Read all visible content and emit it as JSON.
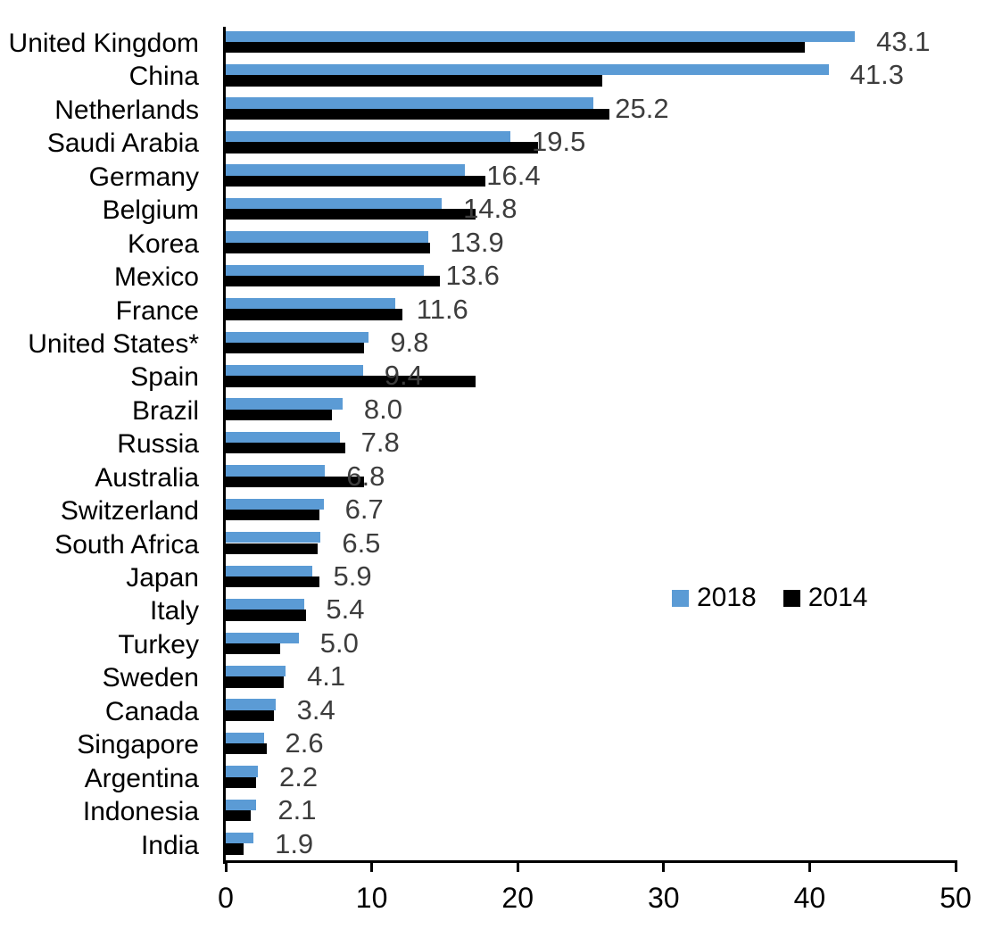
{
  "chart_data": {
    "type": "bar",
    "orientation": "horizontal",
    "title": "",
    "xlabel": "",
    "ylabel": "",
    "xlim": [
      0,
      50
    ],
    "xticks": [
      0,
      10,
      20,
      30,
      40,
      50
    ],
    "xtick_labels": [
      "0",
      "10",
      "20",
      "30",
      "40",
      "50"
    ],
    "grid": false,
    "legend_position": "middle-right",
    "categories": [
      "United Kingdom",
      "China",
      "Netherlands",
      "Saudi Arabia",
      "Germany",
      "Belgium",
      "Korea",
      "Mexico",
      "France",
      "United States*",
      "Spain",
      "Brazil",
      "Russia",
      "Australia",
      "Switzerland",
      "South Africa",
      "Japan",
      "Italy",
      "Turkey",
      "Sweden",
      "Canada",
      "Singapore",
      "Argentina",
      "Indonesia",
      "India"
    ],
    "series": [
      {
        "name": "2018",
        "color": "#5b9bd5",
        "values": [
          43.1,
          41.3,
          25.2,
          19.5,
          16.4,
          14.8,
          13.9,
          13.6,
          11.6,
          9.8,
          9.4,
          8.0,
          7.8,
          6.8,
          6.7,
          6.5,
          5.9,
          5.4,
          5.0,
          4.1,
          3.4,
          2.6,
          2.2,
          2.1,
          1.9
        ]
      },
      {
        "name": "2014",
        "color": "#000000",
        "values": [
          39.7,
          25.8,
          26.3,
          21.4,
          17.8,
          17.1,
          14.0,
          14.7,
          12.1,
          9.5,
          17.1,
          7.3,
          8.2,
          9.5,
          6.4,
          6.3,
          6.4,
          5.5,
          3.7,
          4.0,
          3.3,
          2.8,
          2.1,
          1.7,
          1.2
        ]
      }
    ],
    "data_labels": [
      "43.1",
      "41.3",
      "25.2",
      "19.5",
      "16.4",
      "14.8",
      "13.9",
      "13.6",
      "11.6",
      "9.8",
      "9.4",
      "8.0",
      "7.8",
      "6.8",
      "6.7",
      "6.5",
      "5.9",
      "5.4",
      "5.0",
      "4.1",
      "3.4",
      "2.6",
      "2.2",
      "2.1",
      "1.9"
    ],
    "data_label_series": "2018",
    "data_label_color": "#3d3d3d"
  }
}
